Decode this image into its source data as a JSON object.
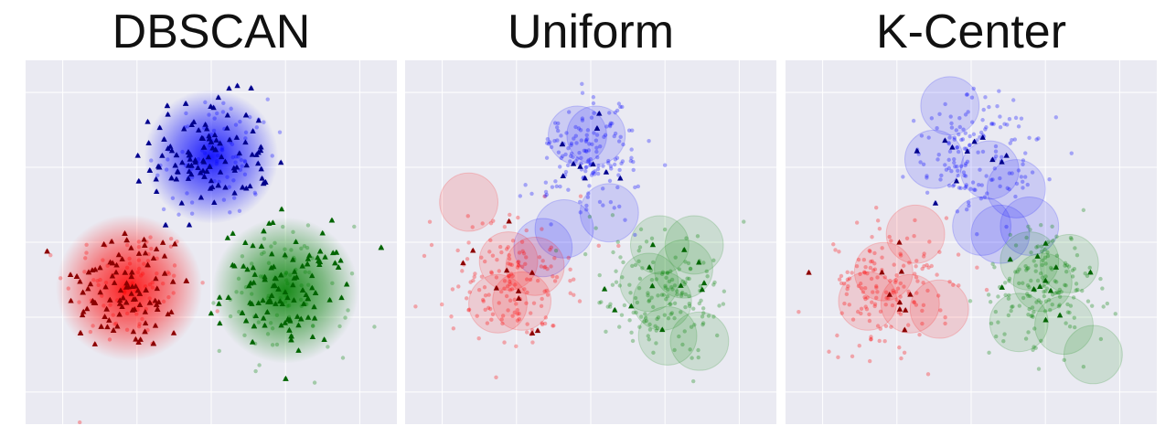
{
  "chart_data": [
    {
      "type": "scatter",
      "title": "DBSCAN",
      "grid": true,
      "clusters": [
        {
          "color": "#ff0000",
          "marker_color": "#8b0000",
          "center": [
            -1.55,
            -0.85
          ],
          "spread": 0.6,
          "points": 190,
          "markers": 150
        },
        {
          "color": "#0000ff",
          "marker_color": "#00008b",
          "center": [
            0.0,
            1.6
          ],
          "spread": 0.55,
          "points": 190,
          "markers": 150
        },
        {
          "color": "#008000",
          "marker_color": "#006400",
          "center": [
            1.4,
            -0.9
          ],
          "spread": 0.6,
          "points": 190,
          "markers": 150
        }
      ],
      "circles": []
    },
    {
      "type": "scatter",
      "title": "Uniform",
      "grid": true,
      "clusters": [
        {
          "color": "#ff0000",
          "marker_color": "#8b0000",
          "center": [
            -1.55,
            -0.85
          ],
          "spread": 0.6,
          "points": 170,
          "markers": 10
        },
        {
          "color": "#0000ff",
          "marker_color": "#00008b",
          "center": [
            0.0,
            1.6
          ],
          "spread": 0.55,
          "points": 170,
          "markers": 12
        },
        {
          "color": "#008000",
          "marker_color": "#006400",
          "center": [
            1.4,
            -0.9
          ],
          "spread": 0.6,
          "points": 170,
          "markers": 12
        }
      ],
      "circles": [
        {
          "cluster": 1,
          "x": -0.25,
          "y": 2.0
        },
        {
          "cluster": 1,
          "x": 0.1,
          "y": 2.0
        },
        {
          "cluster": 1,
          "x": 0.35,
          "y": 0.55
        },
        {
          "cluster": 1,
          "x": -0.5,
          "y": 0.25
        },
        {
          "cluster": 1,
          "x": -0.9,
          "y": -0.1
        },
        {
          "cluster": 0,
          "x": -2.3,
          "y": 0.75
        },
        {
          "cluster": 0,
          "x": -1.55,
          "y": -0.35
        },
        {
          "cluster": 0,
          "x": -1.75,
          "y": -1.15
        },
        {
          "cluster": 0,
          "x": -1.3,
          "y": -1.1
        },
        {
          "cluster": 0,
          "x": -1.05,
          "y": -0.45
        },
        {
          "cluster": 2,
          "x": 1.35,
          "y": -1.1
        },
        {
          "cluster": 2,
          "x": 1.1,
          "y": -0.75
        },
        {
          "cluster": 2,
          "x": 1.75,
          "y": -0.5
        },
        {
          "cluster": 2,
          "x": 1.95,
          "y": -0.05
        },
        {
          "cluster": 2,
          "x": 1.3,
          "y": -0.05
        },
        {
          "cluster": 2,
          "x": 2.05,
          "y": -1.85
        },
        {
          "cluster": 2,
          "x": 1.45,
          "y": -1.75
        }
      ]
    },
    {
      "type": "scatter",
      "title": "K-Center",
      "grid": true,
      "clusters": [
        {
          "color": "#ff0000",
          "marker_color": "#8b0000",
          "center": [
            -1.55,
            -0.85
          ],
          "spread": 0.6,
          "points": 170,
          "markers": 10
        },
        {
          "color": "#0000ff",
          "marker_color": "#00008b",
          "center": [
            0.0,
            1.6
          ],
          "spread": 0.55,
          "points": 170,
          "markers": 12
        },
        {
          "color": "#008000",
          "marker_color": "#006400",
          "center": [
            1.4,
            -0.9
          ],
          "spread": 0.6,
          "points": 170,
          "markers": 12
        }
      ],
      "circles": [
        {
          "cluster": 1,
          "x": -0.4,
          "y": 2.55
        },
        {
          "cluster": 1,
          "x": -0.7,
          "y": 1.55
        },
        {
          "cluster": 1,
          "x": 0.35,
          "y": 1.35
        },
        {
          "cluster": 1,
          "x": 0.85,
          "y": 1.0
        },
        {
          "cluster": 1,
          "x": 1.1,
          "y": 0.3
        },
        {
          "cluster": 1,
          "x": 0.2,
          "y": 0.3
        },
        {
          "cluster": 1,
          "x": 0.55,
          "y": 0.15
        },
        {
          "cluster": 0,
          "x": -1.05,
          "y": 0.15
        },
        {
          "cluster": 0,
          "x": -1.65,
          "y": -0.55
        },
        {
          "cluster": 0,
          "x": -1.95,
          "y": -1.1
        },
        {
          "cluster": 0,
          "x": -1.15,
          "y": -1.15
        },
        {
          "cluster": 0,
          "x": -0.6,
          "y": -1.25
        },
        {
          "cluster": 2,
          "x": 1.1,
          "y": -0.35
        },
        {
          "cluster": 2,
          "x": 1.85,
          "y": -0.4
        },
        {
          "cluster": 2,
          "x": 1.35,
          "y": -0.75
        },
        {
          "cluster": 2,
          "x": 0.9,
          "y": -1.5
        },
        {
          "cluster": 2,
          "x": 1.75,
          "y": -1.55
        },
        {
          "cluster": 2,
          "x": 2.3,
          "y": -2.1
        }
      ]
    }
  ]
}
